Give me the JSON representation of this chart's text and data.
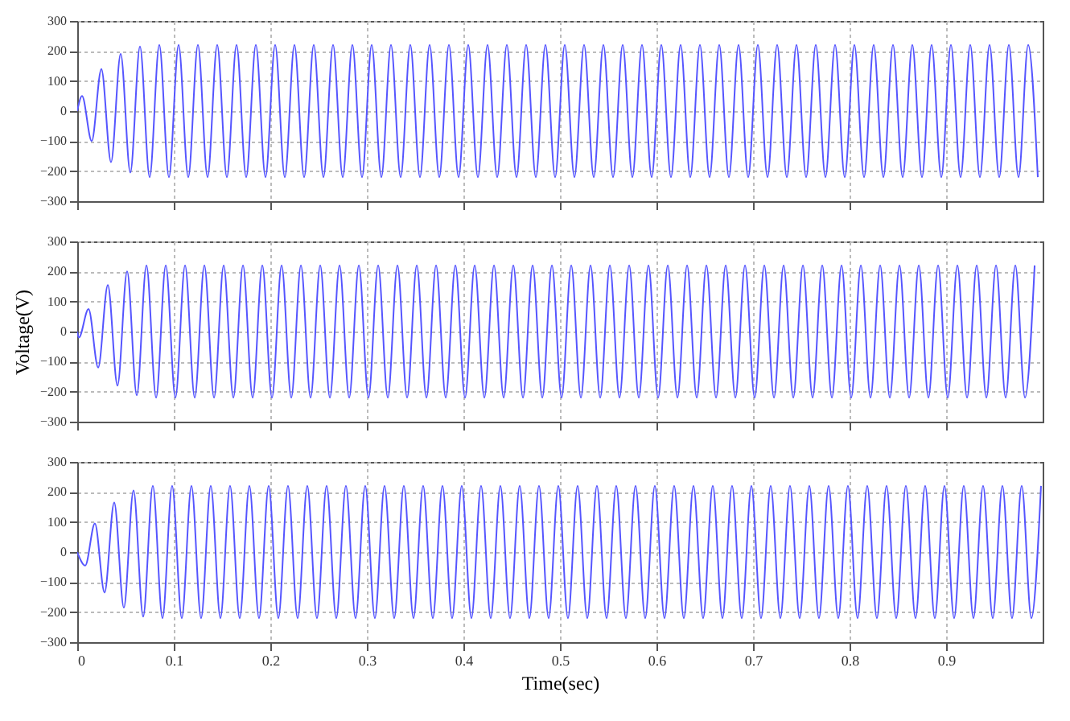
{
  "chart_data": [
    {
      "type": "line",
      "xlim": [
        0,
        1
      ],
      "xticks": [
        0,
        0.1,
        0.2,
        0.3,
        0.4,
        0.5,
        0.6,
        0.7,
        0.8,
        0.9
      ],
      "ylim": [
        -300,
        300
      ],
      "yticks": [
        -300,
        -200,
        -100,
        0,
        100,
        200,
        300
      ],
      "grid": true,
      "tick_labels": "y",
      "series": [
        {
          "color": "#5555ff",
          "x": [
            0,
            0.005,
            0.015,
            0.025,
            0.035,
            0.045,
            0.055,
            0.065,
            0.075,
            0.085,
            0.095,
            0.105,
            0.115,
            0.125,
            0.135,
            0.145,
            0.155,
            0.165,
            0.175,
            0.185,
            0.195,
            0.205,
            0.215,
            0.225,
            0.235,
            0.245,
            0.255,
            0.265,
            0.275,
            0.285,
            0.295,
            0.305,
            0.315,
            0.325,
            0.335,
            0.345,
            0.355,
            0.365,
            0.375,
            0.385,
            0.395,
            0.405,
            0.415,
            0.425,
            0.435,
            0.445,
            0.455,
            0.465,
            0.475,
            0.485,
            0.495,
            0.505,
            0.515,
            0.525,
            0.535,
            0.545,
            0.555,
            0.565,
            0.575,
            0.585,
            0.595,
            0.605,
            0.615,
            0.625,
            0.635,
            0.645,
            0.655,
            0.665,
            0.675,
            0.685,
            0.695,
            0.705,
            0.715,
            0.725,
            0.735,
            0.745,
            0.755,
            0.765,
            0.775,
            0.785,
            0.795,
            0.805,
            0.815,
            0.825,
            0.835,
            0.845,
            0.855,
            0.865,
            0.875,
            0.885,
            0.895,
            0.905,
            0.915,
            0.925,
            0.935,
            0.945,
            0.955,
            0.965,
            0.975,
            0.985,
            0.995
          ],
          "values": [
            0,
            50,
            -100,
            140,
            -170,
            190,
            -205,
            215,
            -220,
            220,
            -220,
            220,
            -220,
            220,
            -220,
            220,
            -220,
            220,
            -220,
            220,
            -220,
            220,
            -220,
            220,
            -220,
            220,
            -220,
            220,
            -220,
            220,
            -220,
            220,
            -220,
            220,
            -220,
            220,
            -220,
            220,
            -220,
            220,
            -220,
            220,
            -220,
            220,
            -220,
            220,
            -220,
            220,
            -220,
            220,
            -220,
            220,
            -220,
            220,
            -220,
            220,
            -220,
            220,
            -220,
            220,
            -220,
            220,
            -220,
            220,
            -220,
            220,
            -220,
            220,
            -220,
            220,
            -220,
            220,
            -220,
            220,
            -220,
            220,
            -220,
            220,
            -220,
            220,
            -220,
            220,
            -220,
            220,
            -220,
            220,
            -220,
            220,
            -220,
            220,
            -220,
            220,
            -220,
            220,
            -220,
            220,
            -220,
            220,
            -220,
            220,
            -220
          ]
        }
      ]
    },
    {
      "type": "line",
      "ylabel": "Voltage(V)",
      "xlim": [
        0,
        1
      ],
      "xticks": [
        0,
        0.1,
        0.2,
        0.3,
        0.4,
        0.5,
        0.6,
        0.7,
        0.8,
        0.9
      ],
      "ylim": [
        -300,
        300
      ],
      "yticks": [
        -300,
        -200,
        -100,
        0,
        100,
        200,
        300
      ],
      "grid": true,
      "tick_labels": "y",
      "series": [
        {
          "color": "#5555ff",
          "x": [
            0,
            0.0017,
            0.0117,
            0.0217,
            0.0317,
            0.0417,
            0.0517,
            0.0617,
            0.0717,
            0.0817,
            0.0917,
            0.1017,
            0.1117,
            0.1217,
            0.1317,
            0.1417,
            0.1517,
            0.1617,
            0.1717,
            0.1817,
            0.1917,
            0.2017,
            0.2117,
            0.2217,
            0.2317,
            0.2417,
            0.2517,
            0.2617,
            0.2717,
            0.2817,
            0.2917,
            0.3017,
            0.3117,
            0.3217,
            0.3317,
            0.3417,
            0.3517,
            0.3617,
            0.3717,
            0.3817,
            0.3917,
            0.4017,
            0.4117,
            0.4217,
            0.4317,
            0.4417,
            0.4517,
            0.4617,
            0.4717,
            0.4817,
            0.4917,
            0.5017,
            0.5117,
            0.5217,
            0.5317,
            0.5417,
            0.5517,
            0.5617,
            0.5717,
            0.5817,
            0.5917,
            0.6017,
            0.6117,
            0.6217,
            0.6317,
            0.6417,
            0.6517,
            0.6617,
            0.6717,
            0.6817,
            0.6917,
            0.7017,
            0.7117,
            0.7217,
            0.7317,
            0.7417,
            0.7517,
            0.7617,
            0.7717,
            0.7817,
            0.7917,
            0.8017,
            0.8117,
            0.8217,
            0.8317,
            0.8417,
            0.8517,
            0.8617,
            0.8717,
            0.8817,
            0.8917,
            0.9017,
            0.9117,
            0.9217,
            0.9317,
            0.9417,
            0.9517,
            0.9617,
            0.9717,
            0.9817,
            0.9917
          ],
          "values": [
            0,
            -20,
            75,
            -120,
            155,
            -180,
            200,
            -212,
            220,
            -220,
            220,
            -220,
            220,
            -220,
            220,
            -220,
            220,
            -220,
            220,
            -220,
            220,
            -220,
            220,
            -220,
            220,
            -220,
            220,
            -220,
            220,
            -220,
            220,
            -220,
            220,
            -220,
            220,
            -220,
            220,
            -220,
            220,
            -220,
            220,
            -220,
            220,
            -220,
            220,
            -220,
            220,
            -220,
            220,
            -220,
            220,
            -220,
            220,
            -220,
            220,
            -220,
            220,
            -220,
            220,
            -220,
            220,
            -220,
            220,
            -220,
            220,
            -220,
            220,
            -220,
            220,
            -220,
            220,
            -220,
            220,
            -220,
            220,
            -220,
            220,
            -220,
            220,
            -220,
            220,
            -220,
            220,
            -220,
            220,
            -220,
            220,
            -220,
            220,
            -220,
            220,
            -220,
            220,
            -220,
            220,
            -220,
            220,
            -220,
            220,
            -220,
            220
          ]
        }
      ]
    },
    {
      "type": "line",
      "xlabel": "Time(sec)",
      "xlim": [
        0,
        1
      ],
      "xticks": [
        0,
        0.1,
        0.2,
        0.3,
        0.4,
        0.5,
        0.6,
        0.7,
        0.8,
        0.9
      ],
      "ylim": [
        -300,
        300
      ],
      "yticks": [
        -300,
        -200,
        -100,
        0,
        100,
        200,
        300
      ],
      "grid": true,
      "series": [
        {
          "color": "#5555ff",
          "x": [
            0,
            0.0083,
            0.0183,
            0.0283,
            0.0383,
            0.0483,
            0.0583,
            0.0683,
            0.0783,
            0.0883,
            0.0983,
            0.1083,
            0.1183,
            0.1283,
            0.1383,
            0.1483,
            0.1583,
            0.1683,
            0.1783,
            0.1883,
            0.1983,
            0.2083,
            0.2183,
            0.2283,
            0.2383,
            0.2483,
            0.2583,
            0.2683,
            0.2783,
            0.2883,
            0.2983,
            0.3083,
            0.3183,
            0.3283,
            0.3383,
            0.3483,
            0.3583,
            0.3683,
            0.3783,
            0.3883,
            0.3983,
            0.4083,
            0.4183,
            0.4283,
            0.4383,
            0.4483,
            0.4583,
            0.4683,
            0.4783,
            0.4883,
            0.4983,
            0.5083,
            0.5183,
            0.5283,
            0.5383,
            0.5483,
            0.5583,
            0.5683,
            0.5783,
            0.5883,
            0.5983,
            0.6083,
            0.6183,
            0.6283,
            0.6383,
            0.6483,
            0.6583,
            0.6683,
            0.6783,
            0.6883,
            0.6983,
            0.7083,
            0.7183,
            0.7283,
            0.7383,
            0.7483,
            0.7583,
            0.7683,
            0.7783,
            0.7883,
            0.7983,
            0.8083,
            0.8183,
            0.8283,
            0.8383,
            0.8483,
            0.8583,
            0.8683,
            0.8783,
            0.8883,
            0.8983,
            0.9083,
            0.9183,
            0.9283,
            0.9383,
            0.9483,
            0.9583,
            0.9683,
            0.9783,
            0.9883,
            0.9983
          ],
          "values": [
            0,
            -45,
            95,
            -135,
            165,
            -185,
            205,
            -215,
            220,
            -220,
            220,
            -220,
            220,
            -220,
            220,
            -220,
            220,
            -220,
            220,
            -220,
            220,
            -220,
            220,
            -220,
            220,
            -220,
            220,
            -220,
            220,
            -220,
            220,
            -220,
            220,
            -220,
            220,
            -220,
            220,
            -220,
            220,
            -220,
            220,
            -220,
            220,
            -220,
            220,
            -220,
            220,
            -220,
            220,
            -220,
            220,
            -220,
            220,
            -220,
            220,
            -220,
            220,
            -220,
            220,
            -220,
            220,
            -220,
            220,
            -220,
            220,
            -220,
            220,
            -220,
            220,
            -220,
            220,
            -220,
            220,
            -220,
            220,
            -220,
            220,
            -220,
            220,
            -220,
            220,
            -220,
            220,
            -220,
            220,
            -220,
            220,
            -220,
            220,
            -220,
            220,
            -220,
            220,
            -220,
            220,
            -220,
            220,
            -220,
            220,
            -220,
            220
          ]
        }
      ]
    }
  ]
}
